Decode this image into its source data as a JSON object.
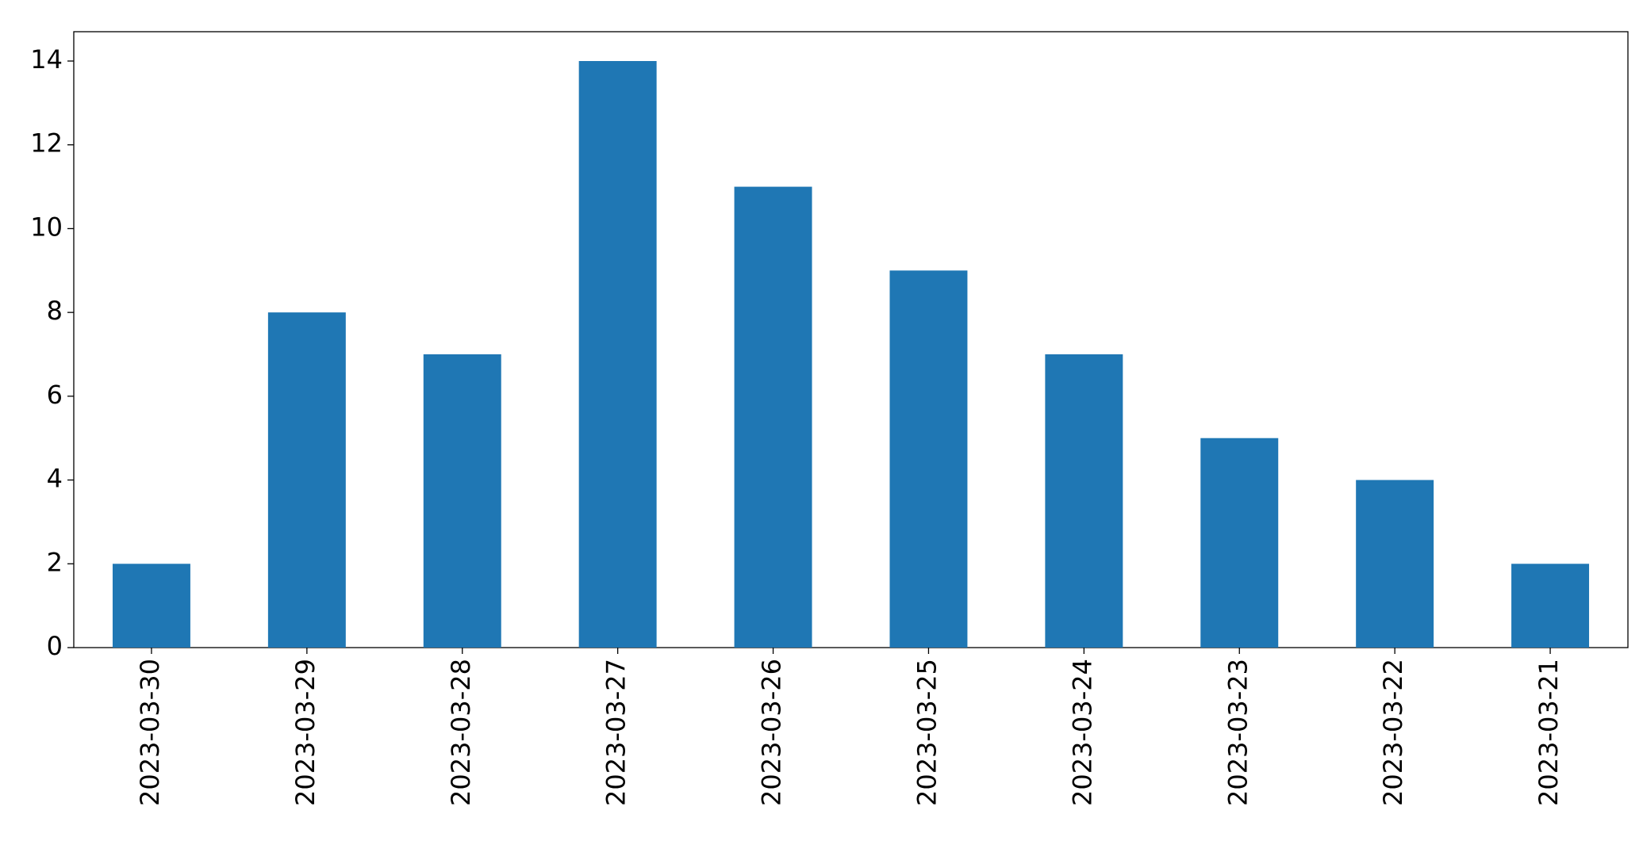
{
  "chart_data": {
    "type": "bar",
    "categories": [
      "2023-03-30",
      "2023-03-29",
      "2023-03-28",
      "2023-03-27",
      "2023-03-26",
      "2023-03-25",
      "2023-03-24",
      "2023-03-23",
      "2023-03-22",
      "2023-03-21"
    ],
    "values": [
      2,
      8,
      7,
      14,
      11,
      9,
      7,
      5,
      4,
      2
    ],
    "color": "#1f77b4",
    "ylim": [
      0,
      14.7
    ],
    "yticks": [
      0,
      2,
      4,
      6,
      8,
      10,
      12,
      14
    ],
    "grid": false
  }
}
